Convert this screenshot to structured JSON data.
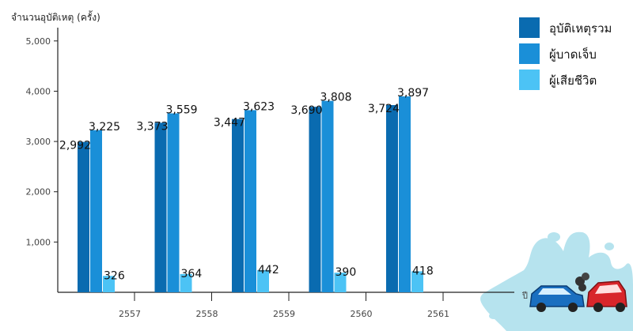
{
  "chart_data": {
    "type": "bar",
    "title": "",
    "ylabel": "จำนวนอุบัติเหตุ (ครั้ง)",
    "xlabel": "ปี",
    "categories": [
      "2557",
      "2558",
      "2559",
      "2560",
      "2561"
    ],
    "series": [
      {
        "name": "อุบัติเหตุรวม",
        "color": "#0a6bb0",
        "values": [
          2992,
          3373,
          3447,
          3690,
          3724
        ]
      },
      {
        "name": "ผู้บาดเจ็บ",
        "color": "#1a8fd8",
        "values": [
          3225,
          3559,
          3623,
          3808,
          3897
        ]
      },
      {
        "name": "ผู้เสียชีวิต",
        "color": "#4cc3f5",
        "values": [
          326,
          364,
          442,
          390,
          418
        ]
      }
    ],
    "value_labels": [
      [
        "2,992",
        "3,373",
        "3,447",
        "3,690",
        "3,724"
      ],
      [
        "3,225",
        "3,559",
        "3,623",
        "3,808",
        "3,897"
      ],
      [
        "326",
        "364",
        "442",
        "390",
        "418"
      ]
    ],
    "yticks": [
      1000,
      2000,
      3000,
      4000,
      5000
    ],
    "ytick_labels": [
      "1,000",
      "2,000",
      "3,000",
      "4,000",
      "5,000"
    ],
    "ylim": [
      0,
      5500
    ],
    "grid": false,
    "legend_position": "top-right"
  },
  "decoration": {
    "splash_icon": "water-splash-icon",
    "cars_icon": "car-crash-icon",
    "splash_color": "#b6e3ee"
  }
}
